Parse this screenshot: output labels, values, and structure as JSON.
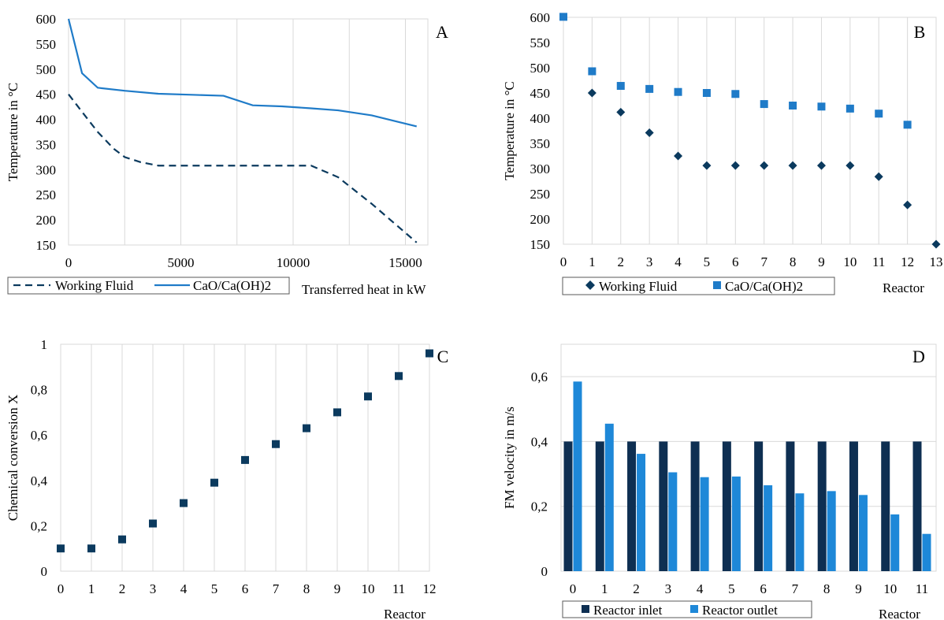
{
  "colors": {
    "dark": "#0b3a5e",
    "blue": "#1f7bc8",
    "bar_dark": "#0e2f52",
    "bar_blue": "#1e88d8"
  },
  "chart_data": [
    {
      "panel": "A",
      "type": "line",
      "ylabel": "Temperature  in °C",
      "xlabel": "Transferred  heat in kW",
      "xlim": [
        0,
        16000
      ],
      "ylim": [
        150,
        600
      ],
      "xticks": [
        "0",
        "5000",
        "10000",
        "15000"
      ],
      "yticks": [
        "150",
        "200",
        "250",
        "300",
        "350",
        "400",
        "450",
        "500",
        "550",
        "600"
      ],
      "series": [
        {
          "name": "Working Fluid",
          "style": "dashed",
          "x": [
            0,
            600,
            1300,
            2000,
            2500,
            3200,
            4000,
            6000,
            8000,
            10000,
            10800,
            12000,
            13500,
            15500
          ],
          "y": [
            450,
            415,
            375,
            342,
            325,
            315,
            308,
            308,
            308,
            308,
            308,
            285,
            232,
            155
          ]
        },
        {
          "name": "CaO/Ca(OH)2",
          "style": "solid",
          "x": [
            0,
            600,
            1300,
            2500,
            4000,
            5500,
            6900,
            8200,
            9500,
            10800,
            12000,
            13500,
            15500
          ],
          "y": [
            600,
            492,
            463,
            457,
            451,
            449,
            447,
            428,
            426,
            422,
            418,
            408,
            386
          ]
        }
      ]
    },
    {
      "panel": "B",
      "type": "scatter",
      "ylabel": "Temperature  in °C",
      "xlabel": "Reactor",
      "xlim": [
        0,
        13
      ],
      "ylim": [
        150,
        600
      ],
      "xticks": [
        "0",
        "1",
        "2",
        "3",
        "4",
        "5",
        "6",
        "7",
        "8",
        "9",
        "10",
        "11",
        "12",
        "13"
      ],
      "yticks": [
        "150",
        "200",
        "250",
        "300",
        "350",
        "400",
        "450",
        "500",
        "550",
        "600"
      ],
      "series": [
        {
          "name": "Working Fluid",
          "marker": "diamond",
          "x": [
            1,
            2,
            3,
            4,
            5,
            6,
            7,
            8,
            9,
            10,
            11,
            12,
            13
          ],
          "y": [
            450,
            412,
            371,
            325,
            306,
            306,
            306,
            306,
            306,
            306,
            284,
            228,
            150
          ]
        },
        {
          "name": "CaO/Ca(OH)2",
          "marker": "square",
          "x": [
            0,
            1,
            2,
            3,
            4,
            5,
            6,
            7,
            8,
            9,
            10,
            11,
            12
          ],
          "y": [
            601,
            493,
            464,
            458,
            452,
            450,
            448,
            428,
            425,
            423,
            419,
            409,
            387
          ]
        }
      ]
    },
    {
      "panel": "C",
      "type": "scatter",
      "ylabel": "Chemical  conversion  X",
      "xlabel": "Reactor",
      "xlim": [
        0,
        12
      ],
      "ylim": [
        0,
        1
      ],
      "xticks": [
        "0",
        "1",
        "2",
        "3",
        "4",
        "5",
        "6",
        "7",
        "8",
        "9",
        "10",
        "11",
        "12"
      ],
      "yticks": [
        "0",
        "0,2",
        "0,4",
        "0,6",
        "0,8",
        "1"
      ],
      "series": [
        {
          "name": "",
          "marker": "square",
          "x": [
            0,
            1,
            2,
            3,
            4,
            5,
            6,
            7,
            8,
            9,
            10,
            11,
            12
          ],
          "y": [
            0.1,
            0.1,
            0.14,
            0.21,
            0.3,
            0.39,
            0.49,
            0.56,
            0.63,
            0.7,
            0.77,
            0.86,
            0.96
          ]
        }
      ]
    },
    {
      "panel": "D",
      "type": "bar",
      "ylabel": "FM velocity  in m/s",
      "xlabel": "Reactor",
      "ylim": [
        0,
        0.7
      ],
      "categories": [
        "0",
        "1",
        "2",
        "3",
        "4",
        "5",
        "6",
        "7",
        "8",
        "9",
        "10",
        "11"
      ],
      "yticks": [
        "0",
        "0,2",
        "0,4",
        "0,6"
      ],
      "series": [
        {
          "name": "Reactor inlet",
          "values": [
            0.4,
            0.4,
            0.4,
            0.4,
            0.4,
            0.4,
            0.4,
            0.4,
            0.4,
            0.4,
            0.4,
            0.4
          ]
        },
        {
          "name": "Reactor outlet",
          "values": [
            0.585,
            0.455,
            0.362,
            0.305,
            0.29,
            0.292,
            0.265,
            0.24,
            0.247,
            0.235,
            0.175,
            0.115
          ]
        }
      ]
    }
  ]
}
